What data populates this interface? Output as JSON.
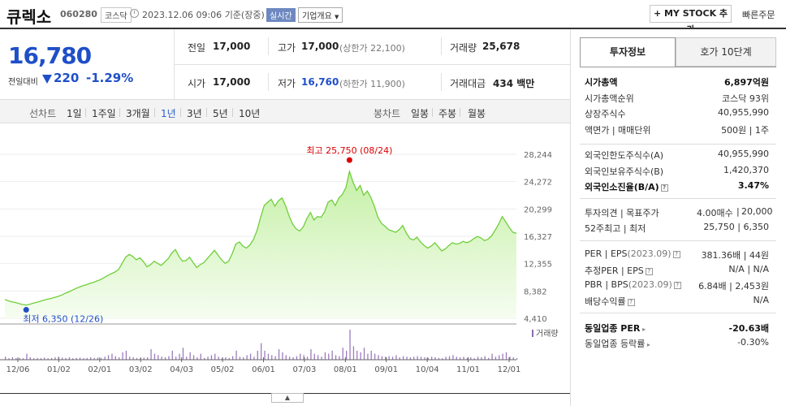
{
  "stock": {
    "name": "큐렉소",
    "code": "060280",
    "market": "코스닥",
    "datetime": "2023.12.06 09:06",
    "basis": "기준(장중)",
    "realtime_label": "실시간",
    "company_overview": "기업개요",
    "mystock_button": "+ MY STOCK 추가",
    "quick_order": "빠른주문"
  },
  "quote": {
    "price": "16,780",
    "prev_label": "전일대비",
    "change": "220",
    "change_pct": "-1.29%",
    "direction": "down",
    "prev_close_label": "전일",
    "prev_close": "17,000",
    "high_label": "고가",
    "high": "17,000",
    "upper_limit": "(상한가 22,100)",
    "volume_label": "거래량",
    "volume": "25,678",
    "open_label": "시가",
    "open": "17,000",
    "low_label": "저가",
    "low": "16,760",
    "lower_limit": "(하한가 11,900)",
    "amount_label": "거래대금",
    "amount": "434",
    "amount_unit": "백만"
  },
  "periods": {
    "line_label": "선차트",
    "line": [
      "1일",
      "1주일",
      "3개월",
      "1년",
      "3년",
      "5년",
      "10년"
    ],
    "active": "1년",
    "candle_label": "봉차트",
    "candle": [
      "일봉",
      "주봉",
      "월봉"
    ]
  },
  "chart_data": {
    "type": "area",
    "y_ticks": [
      "28,244",
      "24,272",
      "20,299",
      "16,327",
      "12,355",
      "8,382",
      "4,410"
    ],
    "ylim": [
      4410,
      28244
    ],
    "x_ticks": [
      "12/06",
      "01/02",
      "02/01",
      "03/02",
      "04/03",
      "05/02",
      "06/01",
      "07/03",
      "08/01",
      "09/01",
      "10/04",
      "11/01",
      "12/01"
    ],
    "high_annotation": "최고 25,750 (08/24)",
    "low_annotation": "최저 6,350 (12/26)",
    "volume_label": "거래량",
    "colors": {
      "line": "#6fcf3a",
      "fill_top": "#c5f0a6",
      "fill_bottom": "#f6fdf1",
      "high": "#d00",
      "low": "#1f4fc8",
      "volume": "#9c7cbf"
    },
    "series": [
      {
        "name": "price",
        "values": [
          7150,
          6950,
          6800,
          6700,
          6550,
          6420,
          6350,
          6450,
          6600,
          6750,
          6900,
          7050,
          7200,
          7300,
          7450,
          7600,
          7800,
          8050,
          8250,
          8500,
          8750,
          8950,
          9150,
          9300,
          9500,
          9650,
          9850,
          10050,
          10350,
          10650,
          10900,
          11150,
          11500,
          12400,
          13300,
          13700,
          13400,
          12900,
          13200,
          12650,
          11900,
          12200,
          12700,
          12400,
          12100,
          12600,
          13100,
          13900,
          14400,
          13400,
          12700,
          12800,
          13300,
          12500,
          11800,
          12200,
          12500,
          13100,
          13700,
          14300,
          13600,
          12900,
          12400,
          12700,
          13800,
          15200,
          15500,
          14900,
          14600,
          15100,
          15900,
          17200,
          19100,
          20800,
          21300,
          21700,
          20700,
          21500,
          21900,
          20800,
          19300,
          18100,
          17400,
          17100,
          17700,
          18900,
          19800,
          18700,
          19200,
          19100,
          19900,
          21300,
          21600,
          20800,
          21900,
          22400,
          23400,
          25750,
          24200,
          23000,
          23700,
          22300,
          22900,
          22000,
          20700,
          19100,
          18200,
          17800,
          17300,
          17100,
          16900,
          17300,
          17900,
          16800,
          16000,
          15800,
          16200,
          15500,
          15000,
          14600,
          14900,
          15400,
          14800,
          14200,
          14500,
          15000,
          15400,
          15200,
          15300,
          15600,
          15400,
          15600,
          16000,
          16300,
          16100,
          15700,
          15900,
          16400,
          17200,
          18100,
          19200,
          18400,
          17600,
          16900,
          16780
        ]
      }
    ],
    "volume_values": [
      0.1,
      0.05,
      0.08,
      0.05,
      0.06,
      0.05,
      0.2,
      0.08,
      0.05,
      0.06,
      0.05,
      0.07,
      0.05,
      0.06,
      0.08,
      0.1,
      0.07,
      0.06,
      0.08,
      0.05,
      0.06,
      0.07,
      0.05,
      0.06,
      0.08,
      0.06,
      0.07,
      0.05,
      0.1,
      0.15,
      0.2,
      0.12,
      0.08,
      0.25,
      0.3,
      0.1,
      0.08,
      0.06,
      0.05,
      0.07,
      0.08,
      0.35,
      0.2,
      0.15,
      0.1,
      0.08,
      0.12,
      0.3,
      0.1,
      0.2,
      0.4,
      0.1,
      0.25,
      0.15,
      0.08,
      0.2,
      0.06,
      0.1,
      0.15,
      0.2,
      0.1,
      0.05,
      0.08,
      0.06,
      0.12,
      0.3,
      0.1,
      0.08,
      0.15,
      0.2,
      0.1,
      0.3,
      0.55,
      0.3,
      0.2,
      0.15,
      0.12,
      0.35,
      0.25,
      0.15,
      0.1,
      0.08,
      0.12,
      0.2,
      0.15,
      0.1,
      0.35,
      0.2,
      0.15,
      0.1,
      0.25,
      0.2,
      0.3,
      0.15,
      0.12,
      0.4,
      0.3,
      1.0,
      0.45,
      0.3,
      0.25,
      0.4,
      0.2,
      0.3,
      0.2,
      0.15,
      0.12,
      0.1,
      0.12,
      0.1,
      0.15,
      0.08,
      0.12,
      0.1,
      0.08,
      0.1,
      0.12,
      0.1,
      0.08,
      0.06,
      0.1,
      0.08,
      0.06,
      0.05,
      0.1,
      0.12,
      0.15,
      0.1,
      0.08,
      0.1,
      0.06,
      0.08,
      0.05,
      0.1,
      0.08,
      0.12,
      0.06,
      0.2,
      0.1,
      0.15,
      0.2,
      0.25,
      0.1,
      0.08,
      0.05
    ]
  },
  "invest": {
    "tab_active": "투자정보",
    "tab_other": "호가 10단계",
    "rows_a": [
      {
        "label": "시가총액",
        "value": "6,897억원",
        "bold": true
      },
      {
        "label": "시가총액순위",
        "value": "코스닥 93위"
      },
      {
        "label": "상장주식수",
        "value": "40,955,990"
      },
      {
        "label": "액면가 | 매매단위",
        "value": "500원 | 1주"
      }
    ],
    "rows_b": [
      {
        "label": "외국인한도주식수(A)",
        "value": "40,955,990"
      },
      {
        "label": "외국인보유주식수(B)",
        "value": "1,420,370"
      },
      {
        "label": "외국인소진율(B/A)",
        "value": "3.47%",
        "bold": true
      }
    ],
    "opinion_label": "투자의견 | 목표주가",
    "opinion_value": "4.00매수",
    "target_value": "20,000",
    "week52_label": "52주최고 | 최저",
    "week52_value": "25,750 | 6,350",
    "per_label": "PER",
    "eps_label": "EPS",
    "eps_date": "(2023.09)",
    "per_value": "381.36배 | 44원",
    "est_per_label": "추정PER",
    "est_eps_label": "EPS",
    "est_value": "N/A | N/A",
    "pbr_label": "PBR",
    "bps_label": "BPS",
    "bps_date": "(2023.09)",
    "pbr_value": "6.84배 | 2,453원",
    "div_label": "배당수익률",
    "div_value": "N/A",
    "ind_per_label": "동일업종 PER",
    "ind_per_value": "-20.63배",
    "ind_rate_label": "동일업종 등락률",
    "ind_rate_value": "-0.30%"
  }
}
